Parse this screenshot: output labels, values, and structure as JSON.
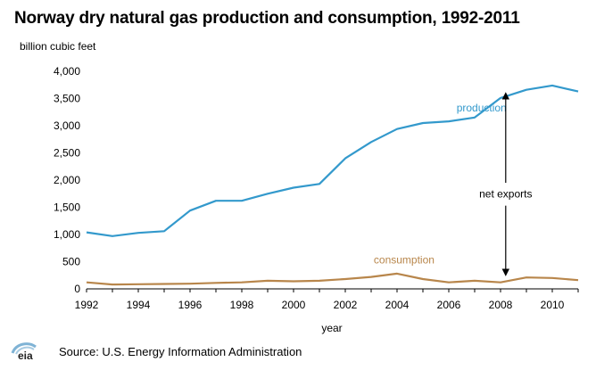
{
  "title": "Norway dry natural gas production and consumption, 1992-2011",
  "source": "Source:  U.S. Energy Information Administration",
  "logo_text": "eia",
  "chart_data": {
    "type": "line",
    "title": "Norway dry natural gas production and consumption, 1992-2011",
    "ylabel": "billion cubic feet",
    "xlabel": "year",
    "x": [
      1992,
      1993,
      1994,
      1995,
      1996,
      1997,
      1998,
      1999,
      2000,
      2001,
      2002,
      2003,
      2004,
      2005,
      2006,
      2007,
      2008,
      2009,
      2010,
      2011
    ],
    "xlim": [
      1992,
      2011
    ],
    "ylim": [
      0,
      4000
    ],
    "xticks": [
      1992,
      1994,
      1996,
      1998,
      2000,
      2002,
      2004,
      2006,
      2008,
      2010
    ],
    "xtick_labels": [
      "1992",
      "1994",
      "1996",
      "1998",
      "2000",
      "2002",
      "2004",
      "2006",
      "2008",
      "2010"
    ],
    "yticks": [
      0,
      500,
      1000,
      1500,
      2000,
      2500,
      3000,
      3500,
      4000
    ],
    "ytick_labels": [
      "0",
      "500",
      "1,000",
      "1,500",
      "2,000",
      "2,500",
      "3,000",
      "3,500",
      "4,000"
    ],
    "grid": false,
    "series": [
      {
        "name": "production",
        "color": "#3399cc",
        "values": [
          1040,
          970,
          1030,
          1060,
          1440,
          1620,
          1620,
          1750,
          1860,
          1930,
          2400,
          2700,
          2940,
          3050,
          3080,
          3150,
          3510,
          3660,
          3740,
          3630
        ]
      },
      {
        "name": "consumption",
        "color": "#b8864b",
        "values": [
          120,
          80,
          85,
          90,
          95,
          110,
          120,
          150,
          140,
          150,
          180,
          220,
          280,
          180,
          120,
          150,
          120,
          210,
          200,
          160
        ]
      }
    ],
    "annotations": [
      {
        "text": "production",
        "color": "#3399cc"
      },
      {
        "text": "consumption",
        "color": "#b8864b"
      },
      {
        "text": "net exports",
        "color": "#000000",
        "arrow_x": 2008.2,
        "arrow_from": 3550,
        "arrow_to": 300
      }
    ]
  }
}
